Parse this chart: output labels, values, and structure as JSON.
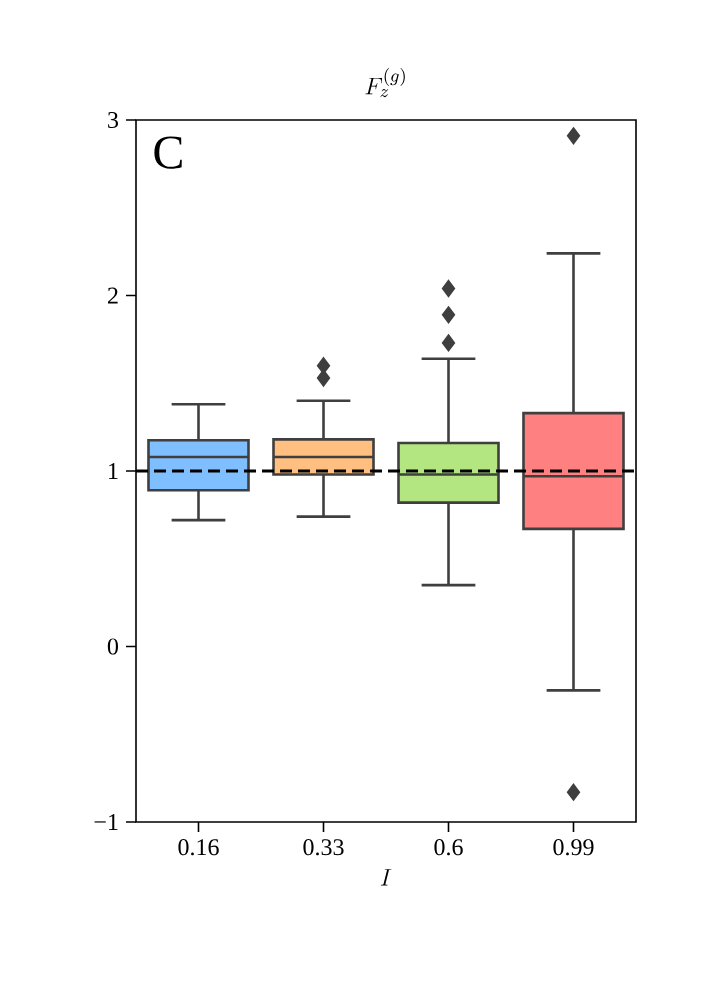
{
  "chart_data": {
    "type": "box",
    "title": "F_z^{(g)}",
    "xlabel": "I",
    "categories": [
      "0.16",
      "0.33",
      "0.6",
      "0.99"
    ],
    "colors": [
      "#80bfff",
      "#ffbf80",
      "#b3e680",
      "#ff8080"
    ],
    "boxes": [
      {
        "low": 0.72,
        "q1": 0.89,
        "median": 1.08,
        "q3": 1.175,
        "high": 1.38
      },
      {
        "low": 0.74,
        "q1": 0.98,
        "median": 1.08,
        "q3": 1.18,
        "high": 1.4,
        "outliers": [
          1.53,
          1.6
        ]
      },
      {
        "low": 0.35,
        "q1": 0.82,
        "median": 0.98,
        "q3": 1.16,
        "high": 1.64,
        "outliers": [
          1.73,
          1.89,
          2.04
        ]
      },
      {
        "low": -0.25,
        "q1": 0.67,
        "median": 0.97,
        "q3": 1.33,
        "high": 2.24,
        "outliers": [
          2.91,
          -0.83
        ]
      }
    ],
    "ylim": [
      -1,
      3
    ],
    "yticks": [
      {
        "value": -1,
        "label": "−1"
      },
      0,
      1,
      2,
      3
    ],
    "ref_lines": [
      {
        "axis": "y",
        "value": 1,
        "line_style": "dashed",
        "color": "#000000"
      }
    ],
    "grid": false,
    "annotations": [
      "C"
    ]
  }
}
